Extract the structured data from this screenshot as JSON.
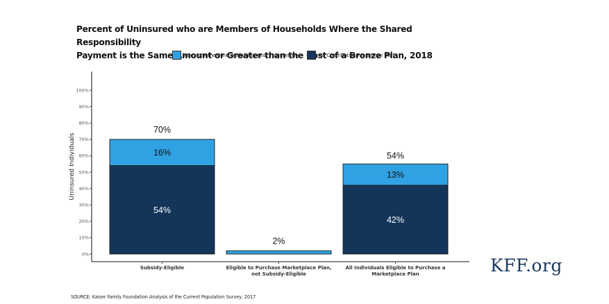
{
  "chart_data": {
    "type": "bar",
    "stacked": true,
    "title": "Percent of Uninsured who are Members of Households Where the Shared Responsibility Payment is the Same Amount or Greater than the Cost of a Bronze Plan, 2018",
    "title_lines": [
      "Percent of Uninsured who are Members of Households Where the Shared Responsibility",
      "Payment is the Same Amount or Greater than the Cost of a Bronze Plan, 2018"
    ],
    "xlabel": "",
    "ylabel": "Uninsured Individuals",
    "ylim": [
      0,
      100
    ],
    "yticks": [
      0,
      10,
      20,
      30,
      40,
      50,
      60,
      70,
      80,
      90,
      100
    ],
    "ytick_labels": [
      "0%",
      "10%",
      "20%",
      "30%",
      "40%",
      "50%",
      "60%",
      "70%",
      "80%",
      "90%",
      "100%"
    ],
    "grid": false,
    "legend_position": "top-center",
    "categories": [
      "Subsidy-Eligible",
      "Eligible to Purchase Marketplace Plan, not Subsidy-Eligible",
      "All Individuals Eligible to Purchase a Marketplace Plan"
    ],
    "category_lines": [
      [
        "Subsidy-Eligible"
      ],
      [
        "Eligible to Purchase Marketplace Plan,",
        "not Subsidy-Eligible"
      ],
      [
        "All Individuals Eligible to Purchase a",
        "Marketplace Plan"
      ]
    ],
    "series": [
      {
        "name": "No Contribution For Bronze Plan",
        "color": "#14355a",
        "label_color": "#ffffff",
        "values": [
          54,
          0,
          42
        ],
        "labels": [
          "54%",
          "",
          "42%"
        ]
      },
      {
        "name": "Atleast Some Contribution But Less Than Penalty",
        "color": "#30a2e3",
        "label_color": "#111111",
        "values": [
          16,
          2,
          13
        ],
        "labels": [
          "16%",
          "",
          "13%"
        ]
      }
    ],
    "totals": [
      70,
      2,
      54
    ],
    "total_labels": [
      "70%",
      "2%",
      "54%"
    ],
    "legend": [
      {
        "name": "Atleast Some Contribution But Less Than Penalty",
        "color": "#30a2e3"
      },
      {
        "name": "No Contribution For Bronze Plan",
        "color": "#14355a"
      }
    ],
    "source": "SOURCE: Kaiser Family Foundation Analysis of the Current Population Survey, 2017"
  },
  "branding": {
    "logo_text": "KFF.org"
  }
}
